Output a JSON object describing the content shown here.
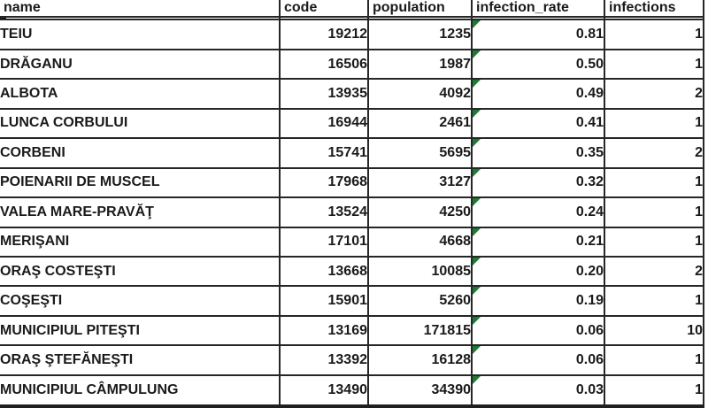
{
  "app": {
    "description_label": "spreadsheet-table-view"
  },
  "colors": {
    "gridline": "#262626",
    "text": "#1a1a1a",
    "background": "#ffffff",
    "error_flag_green": "#1e7b34",
    "selection_black": "#111111"
  },
  "icons": {
    "error_flag": "green-corner-triangle",
    "selection_fill_handle": "black-square"
  },
  "table": {
    "columns": [
      {
        "key": "name",
        "label": "name"
      },
      {
        "key": "code",
        "label": "code"
      },
      {
        "key": "population",
        "label": "population"
      },
      {
        "key": "infection_rate",
        "label": "infection_rate"
      },
      {
        "key": "infections",
        "label": "infections"
      }
    ],
    "empty_row": {
      "name": "",
      "code": "",
      "population": "",
      "infection_rate": "",
      "infections": ""
    },
    "rows": [
      {
        "name": "TEIU",
        "code": "19212",
        "population": "1235",
        "infection_rate": "0.81",
        "infections": "1"
      },
      {
        "name": "DRĂGANU",
        "code": "16506",
        "population": "1987",
        "infection_rate": "0.50",
        "infections": "1"
      },
      {
        "name": "ALBOTA",
        "code": "13935",
        "population": "4092",
        "infection_rate": "0.49",
        "infections": "2"
      },
      {
        "name": "LUNCA CORBULUI",
        "code": "16944",
        "population": "2461",
        "infection_rate": "0.41",
        "infections": "1"
      },
      {
        "name": "CORBENI",
        "code": "15741",
        "population": "5695",
        "infection_rate": "0.35",
        "infections": "2"
      },
      {
        "name": "POIENARII DE MUSCEL",
        "code": "17968",
        "population": "3127",
        "infection_rate": "0.32",
        "infections": "1"
      },
      {
        "name": "VALEA MARE-PRAVĂŢ",
        "code": "13524",
        "population": "4250",
        "infection_rate": "0.24",
        "infections": "1"
      },
      {
        "name": "MERIŞANI",
        "code": "17101",
        "population": "4668",
        "infection_rate": "0.21",
        "infections": "1"
      },
      {
        "name": "ORAŞ COSTEŞTI",
        "code": "13668",
        "population": "10085",
        "infection_rate": "0.20",
        "infections": "2"
      },
      {
        "name": "COŞEŞTI",
        "code": "15901",
        "population": "5260",
        "infection_rate": "0.19",
        "infections": "1"
      },
      {
        "name": "MUNICIPIUL PITEŞTI",
        "code": "13169",
        "population": "171815",
        "infection_rate": "0.06",
        "infections": "10"
      },
      {
        "name": "ORAŞ ŞTEFĂNEŞTI",
        "code": "13392",
        "population": "16128",
        "infection_rate": "0.06",
        "infections": "1"
      },
      {
        "name": "MUNICIPIUL CÂMPULUNG",
        "code": "13490",
        "population": "34390",
        "infection_rate": "0.03",
        "infections": "1"
      }
    ]
  }
}
